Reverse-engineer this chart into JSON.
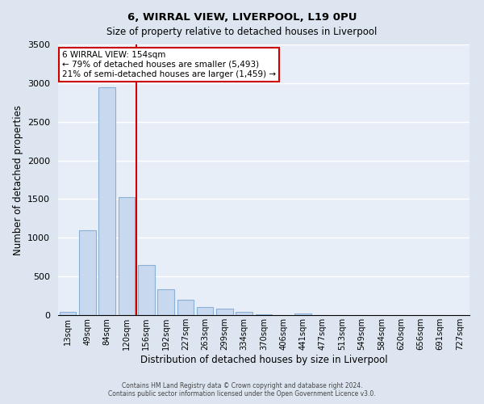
{
  "title": "6, WIRRAL VIEW, LIVERPOOL, L19 0PU",
  "subtitle": "Size of property relative to detached houses in Liverpool",
  "xlabel": "Distribution of detached houses by size in Liverpool",
  "ylabel": "Number of detached properties",
  "bar_labels": [
    "13sqm",
    "49sqm",
    "84sqm",
    "120sqm",
    "156sqm",
    "192sqm",
    "227sqm",
    "263sqm",
    "299sqm",
    "334sqm",
    "370sqm",
    "406sqm",
    "441sqm",
    "477sqm",
    "513sqm",
    "549sqm",
    "584sqm",
    "620sqm",
    "656sqm",
    "691sqm",
    "727sqm"
  ],
  "bar_values": [
    40,
    1100,
    2950,
    1530,
    650,
    330,
    200,
    100,
    80,
    40,
    15,
    5,
    20,
    5,
    0,
    0,
    0,
    0,
    0,
    0,
    0
  ],
  "bar_color": "#c8d8ee",
  "bar_edge_color": "#8ab0d8",
  "vline_x_idx": 3.5,
  "vline_color": "#cc0000",
  "ylim": [
    0,
    3500
  ],
  "yticks": [
    0,
    500,
    1000,
    1500,
    2000,
    2500,
    3000,
    3500
  ],
  "annotation_title": "6 WIRRAL VIEW: 154sqm",
  "annotation_line1": "← 79% of detached houses are smaller (5,493)",
  "annotation_line2": "21% of semi-detached houses are larger (1,459) →",
  "annotation_box_color": "#ffffff",
  "annotation_box_edge": "#cc0000",
  "footer1": "Contains HM Land Registry data © Crown copyright and database right 2024.",
  "footer2": "Contains public sector information licensed under the Open Government Licence v3.0.",
  "bg_color": "#dde6f0",
  "plot_bg_color": "#e8eef8"
}
